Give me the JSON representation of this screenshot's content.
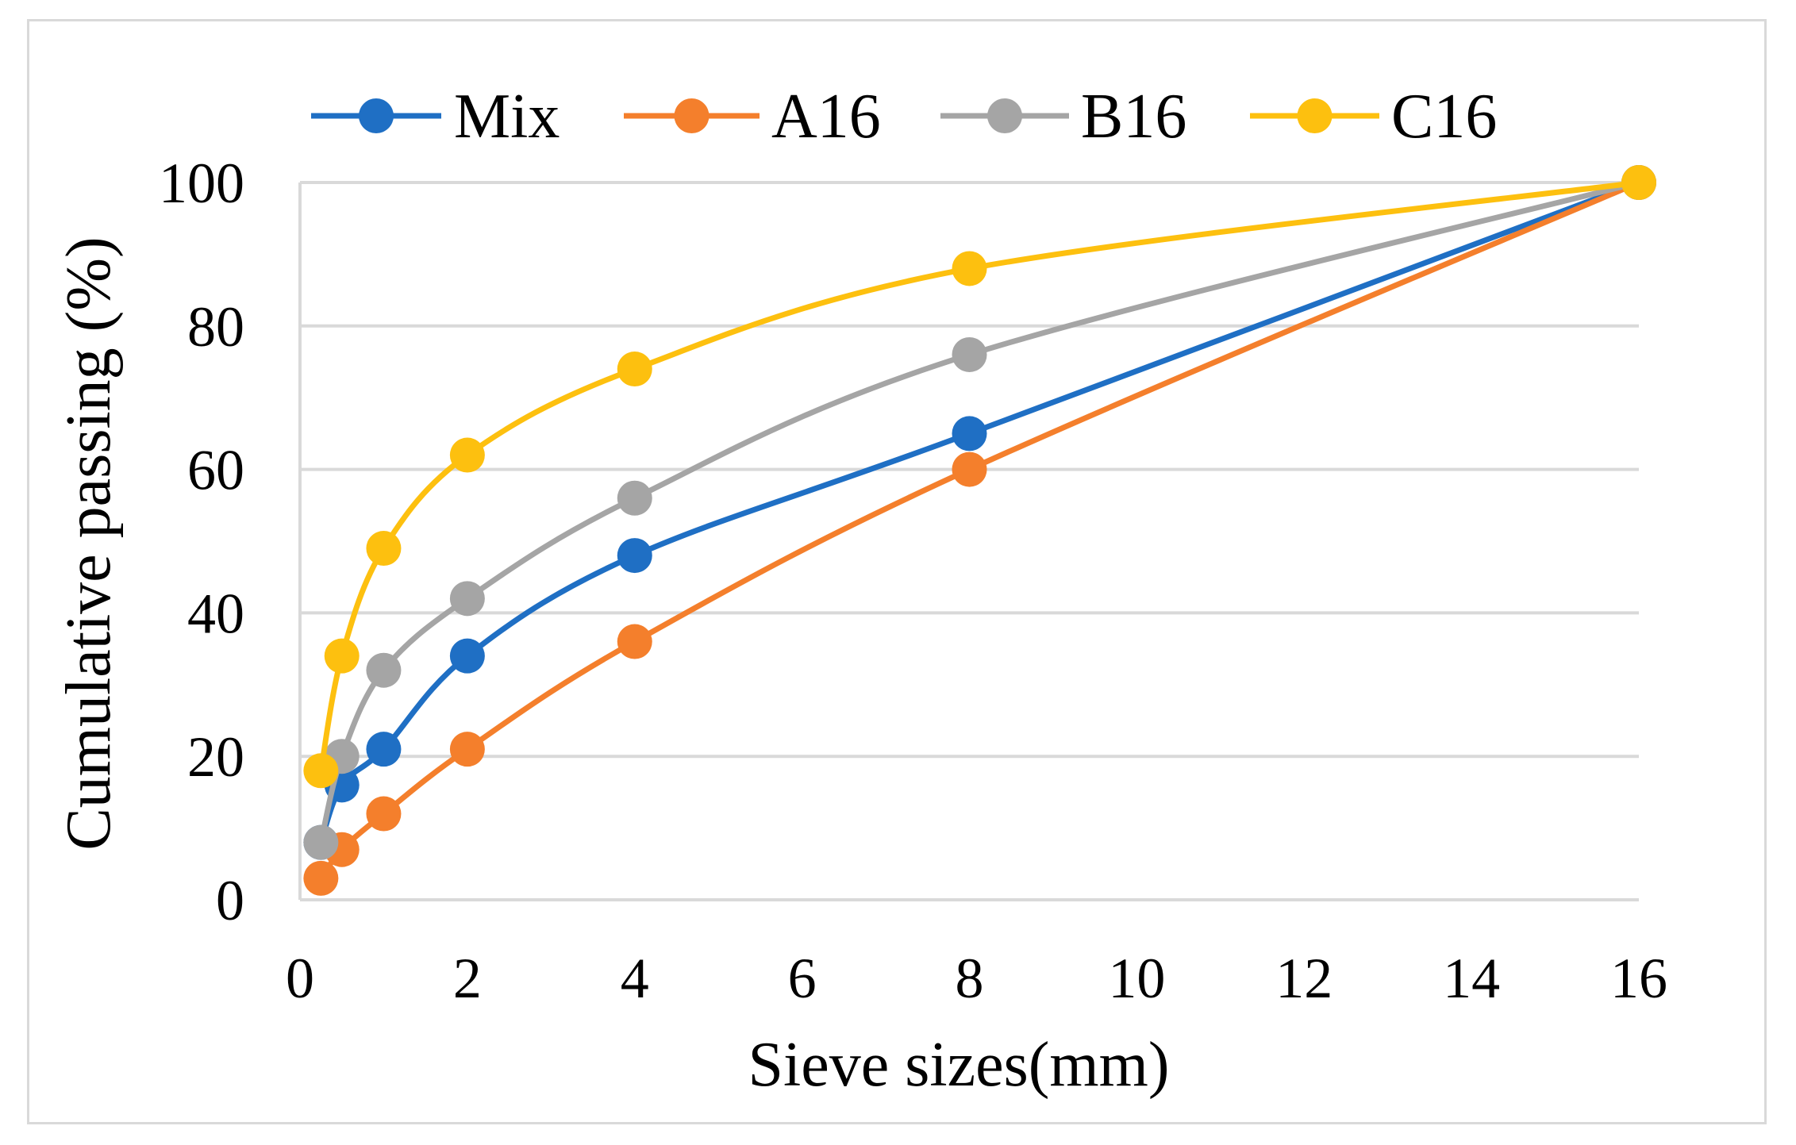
{
  "chart_data": {
    "type": "line",
    "title": "",
    "xlabel": "Sieve sizes(mm)",
    "ylabel": "Cumulative passing (%)",
    "xlim": [
      0,
      16
    ],
    "ylim": [
      0,
      100
    ],
    "xticks": [
      0,
      2,
      4,
      6,
      8,
      10,
      12,
      14,
      16
    ],
    "yticks": [
      0,
      20,
      40,
      60,
      80,
      100
    ],
    "x_tick_labels": [
      "0",
      "2",
      "4",
      "6",
      "8",
      "10",
      "12",
      "14",
      "16"
    ],
    "y_tick_labels": [
      "0",
      "20",
      "40",
      "60",
      "80",
      "100"
    ],
    "grid": "horizontal",
    "legend_position": "top",
    "x": [
      0.25,
      0.5,
      1,
      2,
      4,
      8,
      16
    ],
    "series": [
      {
        "name": "Mix",
        "color": "#1f6fc4",
        "values": [
          8,
          16,
          21,
          34,
          48,
          65,
          100
        ]
      },
      {
        "name": "A16",
        "color": "#f47f2c",
        "values": [
          3,
          7,
          12,
          21,
          36,
          60,
          100
        ]
      },
      {
        "name": "B16",
        "color": "#a5a5a5",
        "values": [
          8,
          20,
          32,
          42,
          56,
          76,
          100
        ]
      },
      {
        "name": "C16",
        "color": "#fdc00f",
        "values": [
          18,
          34,
          49,
          62,
          74,
          88,
          100
        ]
      }
    ]
  }
}
